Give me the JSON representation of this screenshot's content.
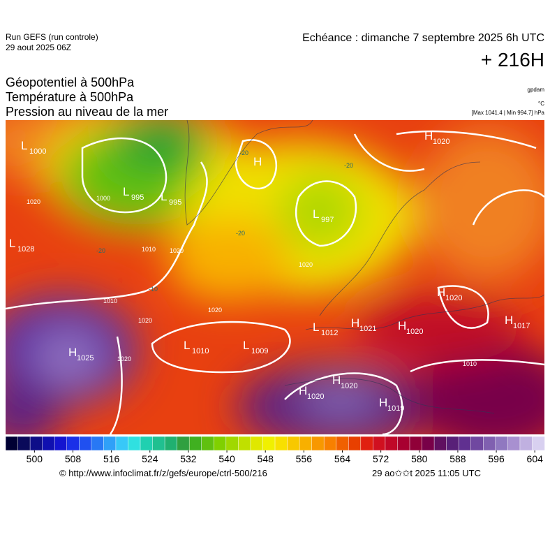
{
  "header": {
    "run": "Run GEFS (run controle)",
    "run_date": "29 aout 2025 06Z",
    "valid": "Echéance : dimanche 7 septembre 2025 6h UTC",
    "lead": "+ 216H",
    "fields": [
      "Géopotentiel à 500hPa",
      "Température à 500hPa",
      "Pression au niveau de la mer"
    ],
    "units": [
      "gpdam",
      "°C",
      "[Max 1041.4 | Min 994.7] hPa"
    ]
  },
  "map": {
    "centers": [
      {
        "symbol": "L",
        "value": 1000
      },
      {
        "symbol": "L",
        "value": 995
      },
      {
        "symbol": "L",
        "value": 995
      },
      {
        "symbol": "H",
        "value": null
      },
      {
        "symbol": "L",
        "value": 997
      },
      {
        "symbol": "L",
        "value": 1028
      },
      {
        "symbol": "L",
        "value": 1012
      },
      {
        "symbol": "H",
        "value": 1021
      },
      {
        "symbol": "H",
        "value": 1020
      },
      {
        "symbol": "H",
        "value": 1020
      },
      {
        "symbol": "H",
        "value": 1017
      },
      {
        "symbol": "L",
        "value": 1010
      },
      {
        "symbol": "L",
        "value": 1009
      },
      {
        "symbol": "H",
        "value": 1025
      },
      {
        "symbol": "H",
        "value": 1020
      },
      {
        "symbol": "H",
        "value": 1020
      },
      {
        "symbol": "H",
        "value": 1019
      },
      {
        "symbol": "H",
        "value": 1020
      }
    ],
    "isobar_labels": [
      1020,
      1010,
      1020,
      1020,
      1020,
      1020,
      1010,
      1020,
      1000,
      1010
    ],
    "isotherm_labels": [
      -20,
      -20,
      -20,
      -10,
      -20
    ]
  },
  "colorbar": {
    "ticks": [
      500,
      508,
      516,
      524,
      532,
      540,
      548,
      556,
      564,
      572,
      580,
      588,
      596,
      604
    ],
    "range": [
      494,
      606
    ],
    "colors": [
      "#000033",
      "#0a0a5a",
      "#0e0e88",
      "#1010b0",
      "#1414d0",
      "#1a30e8",
      "#2050f0",
      "#2878f4",
      "#30a0f8",
      "#38c8f8",
      "#30e0e0",
      "#20d0b0",
      "#20c090",
      "#20b070",
      "#30a040",
      "#40b020",
      "#60c010",
      "#80d000",
      "#a0d800",
      "#c0e000",
      "#e0e800",
      "#f0f000",
      "#f8e000",
      "#f8c800",
      "#f8b000",
      "#f89800",
      "#f88000",
      "#f06000",
      "#e84000",
      "#e02010",
      "#d01020",
      "#c00828",
      "#a80030",
      "#900038",
      "#780048",
      "#601060",
      "#582078",
      "#603090",
      "#7048a0",
      "#8060b0",
      "#9078c0",
      "#a890d0",
      "#c0b0e0",
      "#d8d0f0"
    ]
  },
  "footer": {
    "url": "© http://www.infoclimat.fr/z/gefs/europe/ctrl-500/216",
    "timestamp": "29 ao✩✩t 2025 11:05 UTC"
  }
}
